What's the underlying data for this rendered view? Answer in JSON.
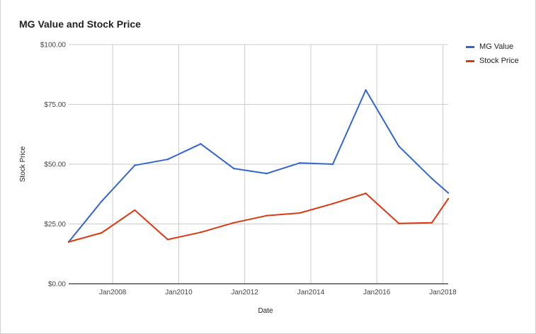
{
  "chart_data": {
    "type": "line",
    "title": "MG Value and Stock Price",
    "xlabel": "Date",
    "ylabel": "Stock Price",
    "x_tick_labels": [
      "Jan2008",
      "Jan2010",
      "Jan2012",
      "Jan2014",
      "Jan2016",
      "Jan2018"
    ],
    "y_tick_labels": [
      "$0.00",
      "$25.00",
      "$50.00",
      "$75.00",
      "$100.00"
    ],
    "ylim": [
      0,
      100
    ],
    "y_ticks": [
      0,
      25,
      50,
      75,
      100
    ],
    "x_ticks": [
      "2008-01-01",
      "2010-01-01",
      "2012-01-01",
      "2014-01-01",
      "2016-01-01",
      "2018-01-01"
    ],
    "xlim": [
      "2006-09-01",
      "2018-03-01"
    ],
    "grid": true,
    "legend_position": "top-right",
    "series": [
      {
        "name": "MG Value",
        "color": "#3366cc",
        "points": [
          {
            "x": "2006-09-01",
            "y": 17.5
          },
          {
            "x": "2007-09-01",
            "y": 34.5
          },
          {
            "x": "2008-09-01",
            "y": 49.5
          },
          {
            "x": "2009-09-01",
            "y": 52.0
          },
          {
            "x": "2010-09-01",
            "y": 58.5
          },
          {
            "x": "2011-09-01",
            "y": 48.2
          },
          {
            "x": "2012-09-01",
            "y": 46.1
          },
          {
            "x": "2013-09-01",
            "y": 50.5
          },
          {
            "x": "2014-09-01",
            "y": 50.0
          },
          {
            "x": "2015-09-01",
            "y": 81.0
          },
          {
            "x": "2016-09-01",
            "y": 57.5
          },
          {
            "x": "2017-09-01",
            "y": 44.0
          },
          {
            "x": "2018-03-01",
            "y": 38.0
          }
        ]
      },
      {
        "name": "Stock Price",
        "color": "#dc3912",
        "points": [
          {
            "x": "2006-09-01",
            "y": 17.5
          },
          {
            "x": "2007-09-01",
            "y": 21.3
          },
          {
            "x": "2008-09-01",
            "y": 30.8
          },
          {
            "x": "2009-09-01",
            "y": 18.5
          },
          {
            "x": "2010-09-01",
            "y": 21.5
          },
          {
            "x": "2011-09-01",
            "y": 25.5
          },
          {
            "x": "2012-09-01",
            "y": 28.5
          },
          {
            "x": "2013-09-01",
            "y": 29.6
          },
          {
            "x": "2014-09-01",
            "y": 33.5
          },
          {
            "x": "2015-09-01",
            "y": 37.8
          },
          {
            "x": "2016-09-01",
            "y": 25.2
          },
          {
            "x": "2017-09-01",
            "y": 25.5
          },
          {
            "x": "2018-03-01",
            "y": 35.5
          }
        ]
      }
    ]
  }
}
